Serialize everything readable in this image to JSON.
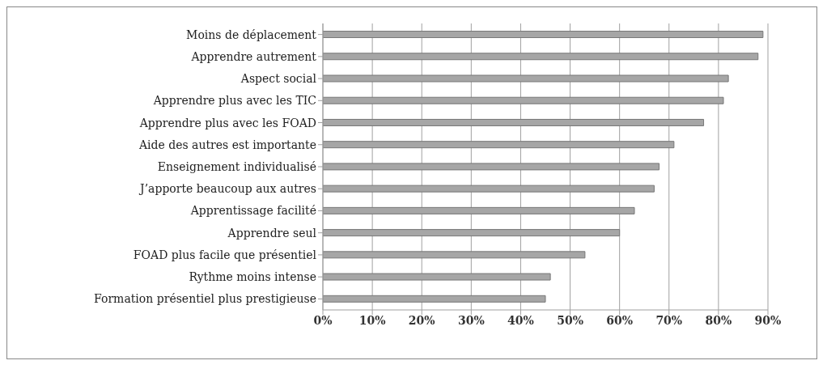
{
  "chart_data": {
    "type": "bar",
    "orientation": "horizontal",
    "categories": [
      "Moins de déplacement",
      "Apprendre autrement",
      "Aspect social",
      "Apprendre plus avec les TIC",
      "Apprendre plus avec les FOAD",
      "Aide des autres est importante",
      "Enseignement individualisé",
      "J’apporte beaucoup aux autres",
      "Apprentissage facilité",
      "Apprendre seul",
      "FOAD plus facile que présentiel",
      "Rythme moins intense",
      "Formation présentiel plus prestigieuse"
    ],
    "values": [
      89,
      88,
      82,
      81,
      77,
      71,
      68,
      67,
      63,
      60,
      53,
      46,
      45
    ],
    "color": "#a6a6a6",
    "xlim": [
      0,
      90
    ],
    "xticks": [
      {
        "value": 0,
        "label": "0%"
      },
      {
        "value": 10,
        "label": "10%"
      },
      {
        "value": 20,
        "label": "20%"
      },
      {
        "value": 30,
        "label": "30%"
      },
      {
        "value": 40,
        "label": "40%"
      },
      {
        "value": 50,
        "label": "50%"
      },
      {
        "value": 60,
        "label": "60%"
      },
      {
        "value": 70,
        "label": "70%"
      },
      {
        "value": 80,
        "label": "80%"
      },
      {
        "value": 90,
        "label": "90%"
      }
    ],
    "grid": "x"
  }
}
